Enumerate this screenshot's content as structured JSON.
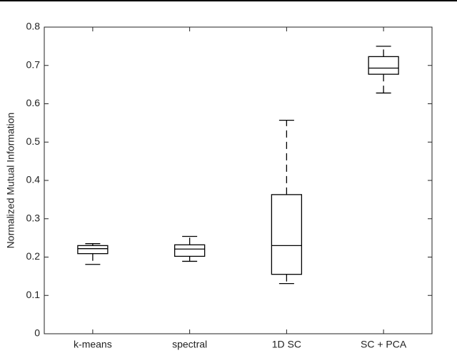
{
  "chart_data": {
    "type": "box",
    "y_label": "Normalized Mutual Information",
    "categories": [
      "k-means",
      "spectral",
      "1D SC",
      "SC + PCA"
    ],
    "boxes": [
      {
        "min": 0.181,
        "q1": 0.209,
        "median": 0.222,
        "q3": 0.23,
        "max": 0.235
      },
      {
        "min": 0.189,
        "q1": 0.202,
        "median": 0.221,
        "q3": 0.232,
        "max": 0.254
      },
      {
        "min": 0.131,
        "q1": 0.155,
        "median": 0.23,
        "q3": 0.363,
        "max": 0.557
      },
      {
        "min": 0.628,
        "q1": 0.677,
        "median": 0.693,
        "q3": 0.723,
        "max": 0.75
      }
    ],
    "color": "#000000",
    "ylim": [
      0,
      0.8
    ],
    "yticks": [
      0,
      0.1,
      0.2,
      0.3,
      0.4,
      0.5,
      0.6,
      0.7,
      0.8
    ],
    "grid": false
  }
}
